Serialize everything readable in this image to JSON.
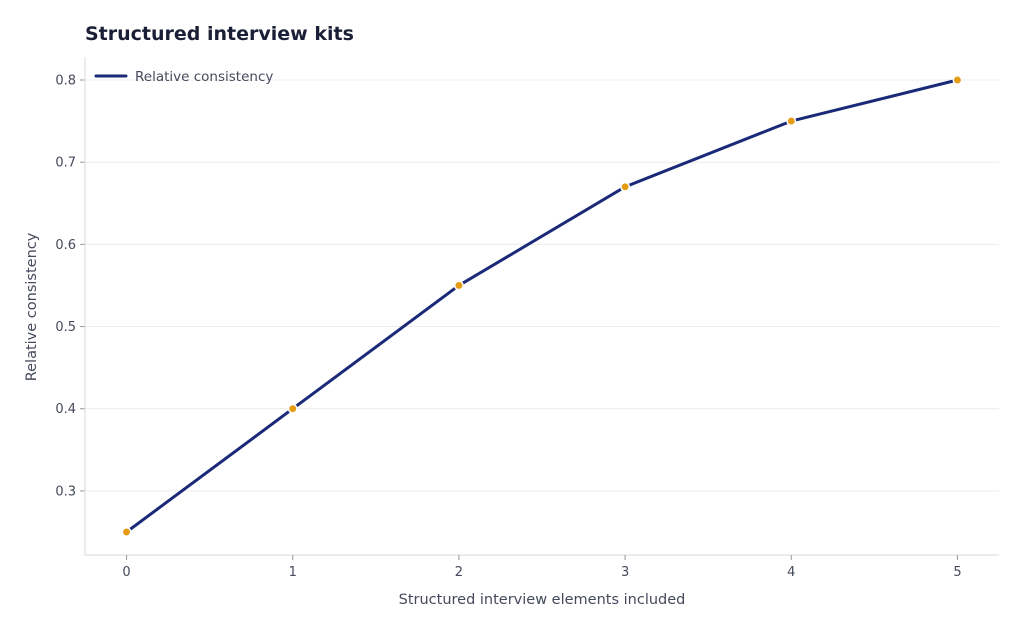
{
  "chart_data": {
    "type": "line",
    "title": "Structured interview kits",
    "xlabel": "Structured interview elements included",
    "ylabel": "Relative consistency",
    "x": [
      0,
      1,
      2,
      3,
      4,
      5
    ],
    "series": [
      {
        "name": "Relative consistency",
        "values": [
          0.25,
          0.4,
          0.55,
          0.67,
          0.75,
          0.8
        ]
      }
    ],
    "xlim": [
      -0.25,
      5.25
    ],
    "ylim": [
      0.222,
      0.828
    ],
    "xticks": [
      "0",
      "1",
      "2",
      "3",
      "4",
      "5"
    ],
    "yticks": [
      "0.3",
      "0.4",
      "0.5",
      "0.6",
      "0.7",
      "0.8"
    ],
    "grid": "horizontal",
    "legend": "top-left",
    "colors": {
      "line": "#1b2a78",
      "marker": "#e59b14",
      "grid": "#ececec",
      "axis": "#d8d8d8"
    }
  }
}
